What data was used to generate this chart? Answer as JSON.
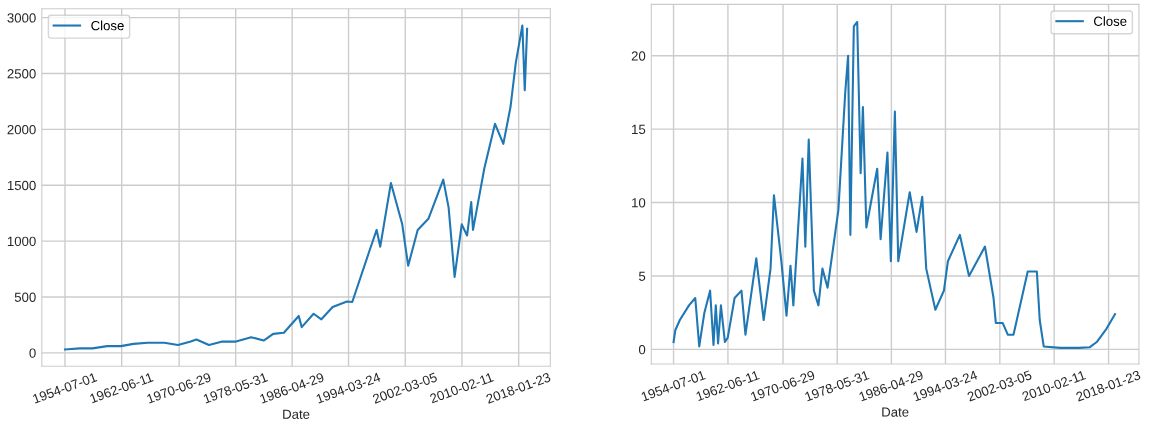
{
  "chart_data": [
    {
      "type": "line",
      "xlabel": "Date",
      "legend": "top left",
      "grid": true,
      "x": [
        "1954-07",
        "1956-08",
        "1958-05",
        "1960-06",
        "1962-05",
        "1964-02",
        "1966-02",
        "1968-06",
        "1970-05",
        "1972-01",
        "1972-12",
        "1974-09",
        "1976-06",
        "1978-05",
        "1980-08",
        "1982-05",
        "1983-09",
        "1985-03",
        "1987-04",
        "1987-09",
        "1989-05",
        "1990-06",
        "1992-01",
        "1994-01",
        "1994-10",
        "1997-02",
        "1998-03",
        "1998-09",
        "2000-03",
        "2001-10",
        "2002-08",
        "2003-12",
        "2005-06",
        "2007-07",
        "2008-04",
        "2009-02",
        "2010-02",
        "2010-11",
        "2011-06",
        "2011-09",
        "2013-04",
        "2014-10",
        "2015-12",
        "2016-12",
        "2017-09",
        "2018-08",
        "2018-12",
        "2019-04"
      ],
      "series": [
        {
          "name": "Close",
          "color": "#1f77b4",
          "values": [
            30,
            40,
            40,
            60,
            60,
            80,
            90,
            90,
            70,
            100,
            120,
            70,
            100,
            100,
            140,
            110,
            170,
            180,
            330,
            230,
            350,
            300,
            410,
            460,
            455,
            900,
            1100,
            950,
            1520,
            1150,
            780,
            1100,
            1200,
            1550,
            1300,
            680,
            1150,
            1050,
            1350,
            1100,
            1650,
            2050,
            1870,
            2200,
            2600,
            2930,
            2350,
            2900
          ]
        }
      ],
      "xlim": [
        "1951-04",
        "2022-07"
      ],
      "xticks": [
        "1954-07-01",
        "1962-06-11",
        "1970-06-29",
        "1978-05-31",
        "1986-04-29",
        "1994-03-24",
        "2002-03-05",
        "2010-02-11",
        "2018-01-23"
      ],
      "ylim": [
        -120,
        3080
      ],
      "yticks": [
        0,
        500,
        1000,
        1500,
        2000,
        2500,
        3000
      ]
    },
    {
      "type": "line",
      "xlabel": "Date",
      "legend": "top right",
      "grid": true,
      "x": [
        "1954-07",
        "1954-10",
        "1955-06",
        "1956-10",
        "1957-09",
        "1958-04",
        "1959-01",
        "1959-11",
        "1960-05",
        "1960-09",
        "1961-01",
        "1961-06",
        "1962-01",
        "1962-06",
        "1963-06",
        "1964-06",
        "1965-01",
        "1966-08",
        "1967-09",
        "1968-09",
        "1969-03",
        "1970-04",
        "1971-01",
        "1971-08",
        "1972-01",
        "1973-05",
        "1973-10",
        "1974-04",
        "1975-01",
        "1975-09",
        "1976-04",
        "1977-01",
        "1978-08",
        "1979-08",
        "1980-01",
        "1980-05",
        "1980-11",
        "1981-05",
        "1981-11",
        "1982-03",
        "1982-09",
        "1984-04",
        "1984-10",
        "1985-10",
        "1986-04",
        "1986-11",
        "1987-05",
        "1989-01",
        "1990-01",
        "1990-11",
        "1991-06",
        "1992-10",
        "1994-01",
        "1994-08",
        "1996-05",
        "1997-09",
        "2000-01",
        "2001-04",
        "2001-08",
        "2002-08",
        "2003-05",
        "2004-03",
        "2006-04",
        "2007-08",
        "2008-01",
        "2008-08",
        "2011-01",
        "2013-10",
        "2015-05",
        "2016-05",
        "2017-10",
        "2019-01"
      ],
      "series": [
        {
          "name": "Close",
          "color": "#1f77b4",
          "values": [
            0.5,
            1.3,
            2.0,
            3.0,
            3.5,
            0.2,
            2.5,
            4.0,
            0.3,
            3.0,
            0.4,
            3.0,
            0.5,
            0.8,
            3.5,
            4.0,
            1.0,
            6.2,
            2.0,
            5.5,
            10.5,
            6.0,
            2.3,
            5.7,
            3.0,
            13.0,
            7.0,
            14.3,
            4.0,
            3.0,
            5.5,
            4.2,
            9.5,
            17.5,
            20.0,
            7.8,
            22.0,
            22.3,
            12.0,
            16.5,
            8.3,
            12.3,
            7.5,
            13.4,
            6.0,
            16.2,
            6.0,
            10.7,
            8.0,
            10.4,
            5.5,
            2.7,
            4.0,
            6.0,
            7.8,
            5.0,
            7.0,
            3.5,
            1.8,
            1.8,
            1.0,
            1.0,
            5.3,
            5.3,
            2.0,
            0.2,
            0.1,
            0.1,
            0.15,
            0.5,
            1.4,
            2.4
          ]
        }
      ],
      "xlim": [
        "1951-04",
        "2022-07"
      ],
      "xticks": [
        "1954-07-01",
        "1962-06-11",
        "1970-06-29",
        "1978-05-31",
        "1986-04-29",
        "1994-03-24",
        "2002-03-05",
        "2010-02-11",
        "2018-01-23"
      ],
      "ylim": [
        -1.0,
        23.5
      ],
      "yticks": [
        0,
        5,
        10,
        15,
        20
      ]
    }
  ]
}
